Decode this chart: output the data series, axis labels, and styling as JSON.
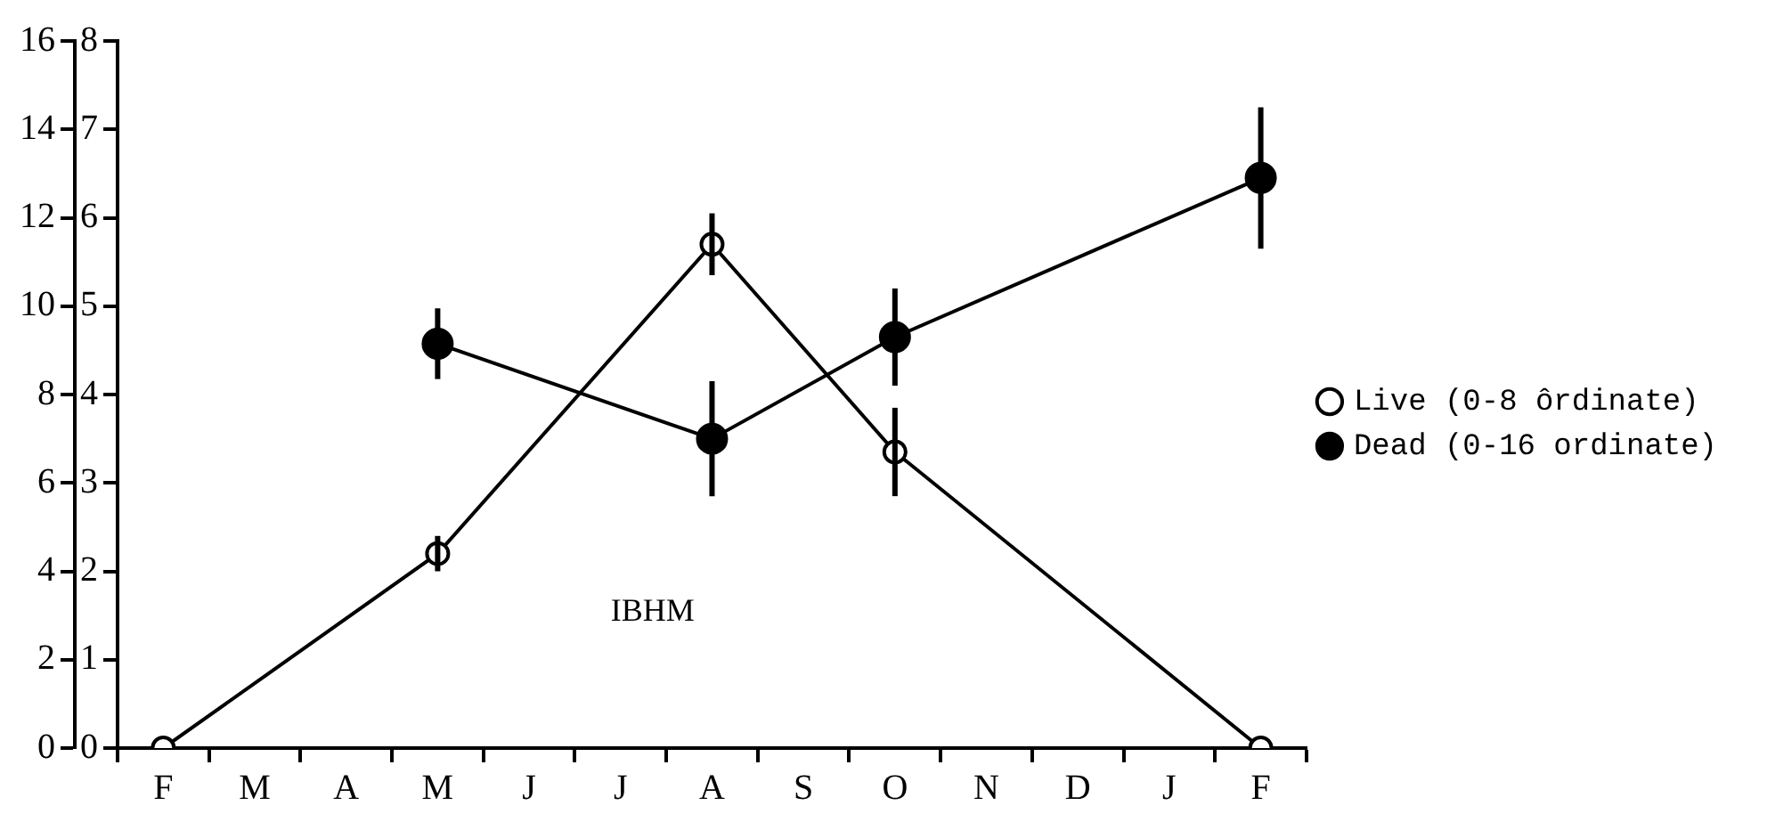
{
  "chart_data": {
    "type": "line",
    "categories": [
      "F",
      "M",
      "A",
      "M",
      "J",
      "J",
      "A",
      "S",
      "O",
      "N",
      "D",
      "J",
      "F"
    ],
    "series": [
      {
        "name": "Live (0-8 ôrdinate)",
        "color": "#000000",
        "axis": "y2",
        "marker": "circle",
        "values": [
          0,
          null,
          null,
          2.2,
          null,
          null,
          5.7,
          null,
          3.35,
          null,
          null,
          null,
          0
        ],
        "errors": [
          null,
          null,
          null,
          0.2,
          null,
          null,
          0.35,
          null,
          0.5,
          null,
          null,
          null,
          null
        ]
      },
      {
        "name": "Dead (0-16 ordinate)",
        "color": "#000000",
        "marker": "circle",
        "values": [
          null,
          null,
          null,
          9.15,
          null,
          null,
          7.0,
          null,
          9.3,
          null,
          null,
          null,
          12.9
        ],
        "errors": [
          null,
          null,
          null,
          0.8,
          null,
          null,
          1.3,
          null,
          1.1,
          null,
          null,
          null,
          1.6
        ]
      }
    ],
    "ylim": [
      0,
      16
    ],
    "yticks": [
      0,
      2,
      4,
      6,
      8,
      10,
      12,
      14,
      16
    ],
    "y2lim": [
      0,
      8
    ],
    "y2ticks": [
      0,
      1,
      2,
      3,
      4,
      5,
      6,
      7,
      8
    ],
    "grid": false,
    "legend": "right",
    "annotations": [
      "IBHM"
    ]
  }
}
